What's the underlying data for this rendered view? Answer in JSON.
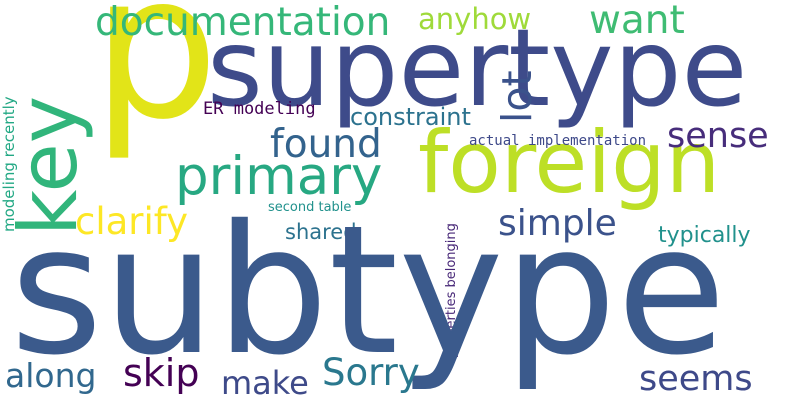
{
  "words": {
    "subtype": {
      "text": "subtype",
      "color": "#3b5a8c"
    },
    "p": {
      "text": "p",
      "color": "#e2e418"
    },
    "supertype": {
      "text": "supertype",
      "color": "#3e4b8a"
    },
    "foreign": {
      "text": "foreign",
      "color": "#bddf26"
    },
    "key": {
      "text": "key",
      "color": "#31b57b"
    },
    "primary": {
      "text": "primary",
      "color": "#27a882"
    },
    "documentation": {
      "text": "documentation",
      "color": "#35b779"
    },
    "anyhow": {
      "text": "anyhow",
      "color": "#9fda3a"
    },
    "want": {
      "text": "want",
      "color": "#3fbc73"
    },
    "lot": {
      "text": "lot",
      "color": "#3b528b"
    },
    "found": {
      "text": "found",
      "color": "#33638d"
    },
    "sense": {
      "text": "sense",
      "color": "#472d7b"
    },
    "constraint": {
      "text": "constraint",
      "color": "#2c728e"
    },
    "er_modeling": {
      "text": "ER modeling",
      "color": "#440154"
    },
    "actual_implementation": {
      "text": "actual implementation",
      "color": "#3e4989"
    },
    "clarify": {
      "text": "clarify",
      "color": "#fde725"
    },
    "simple": {
      "text": "simple",
      "color": "#3b528b"
    },
    "typically": {
      "text": "typically",
      "color": "#21918c"
    },
    "shared": {
      "text": "shared",
      "color": "#2c728e"
    },
    "second_table": {
      "text": "second table",
      "color": "#21918c"
    },
    "modeling_recently": {
      "text": "modeling recently",
      "color": "#22a884"
    },
    "properties_belonging": {
      "text": "properties belonging",
      "color": "#482878"
    },
    "along": {
      "text": "along",
      "color": "#31688e"
    },
    "skip": {
      "text": "skip",
      "color": "#440154"
    },
    "make": {
      "text": "make",
      "color": "#3e4a89"
    },
    "sorry": {
      "text": "Sorry",
      "color": "#2a788e"
    },
    "seems": {
      "text": "seems",
      "color": "#3e4989"
    }
  }
}
